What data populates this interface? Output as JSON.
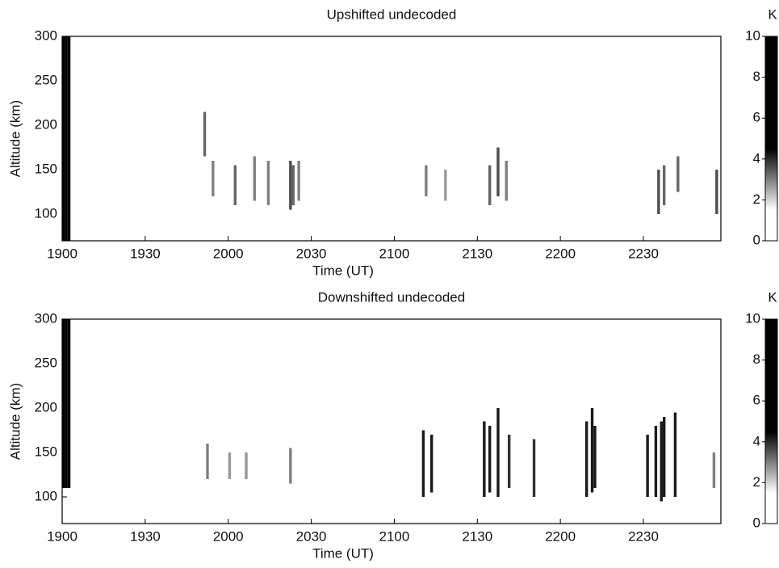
{
  "chart_data": [
    {
      "type": "heatmap",
      "title": "Upshifted undecoded",
      "xlabel": "Time  (UT)",
      "ylabel": "Altitude (km)",
      "xlim": [
        1140,
        1378
      ],
      "xticks": [
        {
          "value": 1140,
          "label": "1900"
        },
        {
          "value": 1170,
          "label": "1930"
        },
        {
          "value": 1200,
          "label": "2000"
        },
        {
          "value": 1230,
          "label": "2030"
        },
        {
          "value": 1260,
          "label": "2100"
        },
        {
          "value": 1290,
          "label": "2130"
        },
        {
          "value": 1320,
          "label": "2200"
        },
        {
          "value": 1350,
          "label": "2230"
        }
      ],
      "ylim": [
        70,
        300
      ],
      "yticks": [
        100,
        150,
        200,
        250,
        300
      ],
      "colorbar_label": "K",
      "clim": [
        0,
        10
      ],
      "cticks": [
        0,
        2,
        4,
        6,
        8,
        10
      ],
      "colormap": [
        "#ffffff",
        "#000000"
      ],
      "x": [
        1140,
        1141,
        1142,
        1191,
        1194,
        1202,
        1209,
        1214,
        1222,
        1223,
        1225,
        1271,
        1278,
        1294,
        1297,
        1300,
        1355,
        1357,
        1362,
        1376
      ],
      "y_low": [
        70,
        70,
        70,
        165,
        120,
        110,
        115,
        110,
        105,
        110,
        115,
        120,
        115,
        110,
        120,
        115,
        100,
        110,
        125,
        100
      ],
      "y_high": [
        300,
        300,
        300,
        215,
        160,
        155,
        165,
        160,
        160,
        155,
        160,
        155,
        150,
        155,
        175,
        160,
        150,
        155,
        165,
        150
      ],
      "values": [
        10,
        10,
        10,
        6,
        5,
        6,
        5,
        5,
        7,
        6,
        5,
        5,
        4,
        6,
        7,
        5,
        7,
        6,
        6,
        7
      ]
    },
    {
      "type": "heatmap",
      "title": "Downshifted undecoded",
      "xlabel": "Time  (UT)",
      "ylabel": "Altitude (km)",
      "xlim": [
        1140,
        1378
      ],
      "xticks": [
        {
          "value": 1140,
          "label": "1900"
        },
        {
          "value": 1170,
          "label": "1930"
        },
        {
          "value": 1200,
          "label": "2000"
        },
        {
          "value": 1230,
          "label": "2030"
        },
        {
          "value": 1260,
          "label": "2100"
        },
        {
          "value": 1290,
          "label": "2130"
        },
        {
          "value": 1320,
          "label": "2200"
        },
        {
          "value": 1350,
          "label": "2230"
        }
      ],
      "ylim": [
        70,
        300
      ],
      "yticks": [
        100,
        150,
        200,
        250,
        300
      ],
      "colorbar_label": "K",
      "clim": [
        0,
        10
      ],
      "cticks": [
        0,
        2,
        4,
        6,
        8,
        10
      ],
      "colormap": [
        "#ffffff",
        "#000000"
      ],
      "x": [
        1140,
        1141,
        1142,
        1192,
        1200,
        1206,
        1222,
        1270,
        1273,
        1292,
        1294,
        1297,
        1301,
        1310,
        1329,
        1331,
        1332,
        1351,
        1354,
        1356,
        1357,
        1361,
        1375
      ],
      "y_low": [
        110,
        110,
        110,
        120,
        120,
        120,
        115,
        100,
        105,
        100,
        105,
        100,
        110,
        100,
        100,
        105,
        110,
        100,
        100,
        95,
        100,
        100,
        110
      ],
      "y_high": [
        300,
        300,
        300,
        160,
        150,
        150,
        155,
        175,
        170,
        185,
        180,
        200,
        170,
        165,
        185,
        200,
        180,
        170,
        180,
        185,
        190,
        195,
        150
      ],
      "values": [
        10,
        10,
        10,
        5,
        4,
        4,
        5,
        9,
        9,
        9,
        9,
        9,
        8,
        8,
        9,
        9,
        9,
        9,
        9,
        9,
        9,
        9,
        5
      ]
    }
  ]
}
